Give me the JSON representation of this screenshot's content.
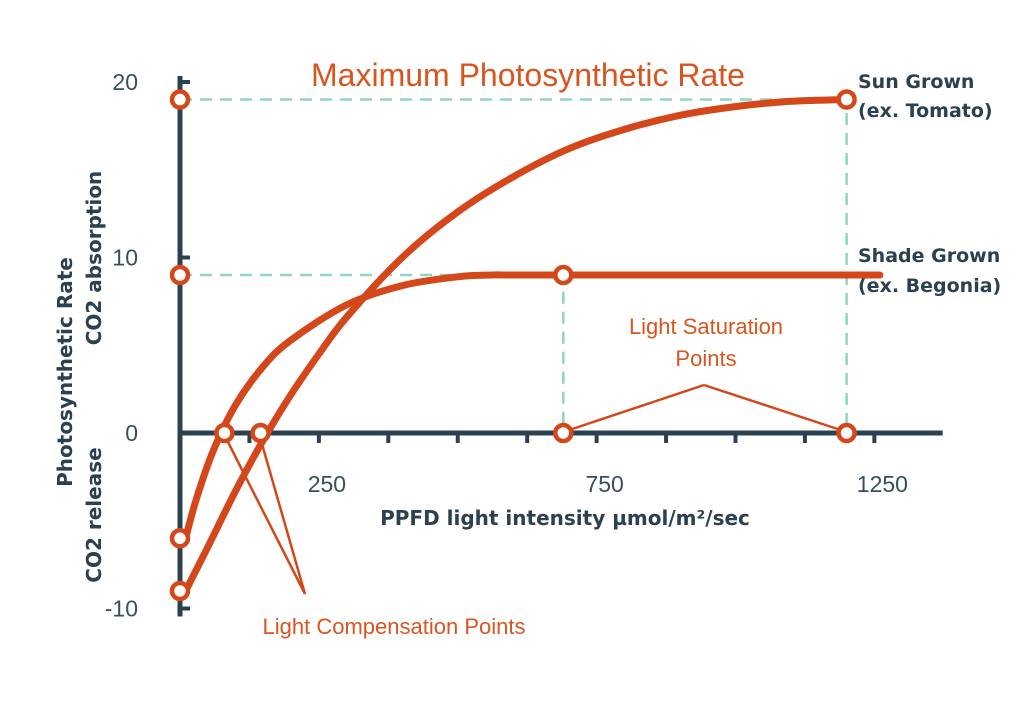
{
  "chart_data": {
    "type": "line",
    "title": "Maximum Photosynthetic Rate",
    "xlabel": "PPFD light intensity µmol/m²/sec",
    "ylabel_top": "Photosynthetic Rate",
    "ylabel_pos": "CO2 absorption",
    "ylabel_neg": "CO2 release",
    "xlim": [
      0,
      1400
    ],
    "ylim": [
      -10,
      20
    ],
    "x_ticks": [
      125,
      250,
      375,
      500,
      625,
      750,
      875,
      1000,
      1125,
      1250
    ],
    "x_tick_labels": [
      {
        "x": 250,
        "label": "250"
      },
      {
        "x": 750,
        "label": "750"
      },
      {
        "x": 1250,
        "label": "1250"
      }
    ],
    "y_ticks": [
      -10,
      0,
      10,
      20
    ],
    "y_tick_labels": [
      {
        "y": 20,
        "label": "20"
      },
      {
        "y": 10,
        "label": "10"
      },
      {
        "y": 0,
        "label": "0"
      },
      {
        "y": -10,
        "label": "-10"
      }
    ],
    "series": [
      {
        "name_line1": "Sun Grown",
        "name_line2": "(ex. Tomato)",
        "x": [
          10,
          50,
          100,
          150,
          200,
          250,
          300,
          400,
          500,
          600,
          700,
          800,
          900,
          1000,
          1100,
          1200
        ],
        "y": [
          -9,
          -6.5,
          -3.3,
          -0.4,
          2.2,
          4.5,
          6.6,
          10.0,
          12.6,
          14.6,
          16.2,
          17.3,
          18.1,
          18.6,
          18.9,
          19
        ]
      },
      {
        "name_line1": "Shade Grown",
        "name_line2": "(ex. Begonia)",
        "x": [
          10,
          30,
          60,
          100,
          150,
          200,
          300,
          400,
          500,
          560,
          600,
          700,
          800,
          900,
          1000,
          1100,
          1200,
          1260
        ],
        "y": [
          -6,
          -3.7,
          -1.0,
          1.6,
          3.8,
          5.3,
          7.3,
          8.4,
          8.9,
          9,
          9,
          9,
          9,
          9,
          9,
          9,
          9,
          9
        ]
      }
    ],
    "markers": [
      {
        "x": 0,
        "y": 19
      },
      {
        "x": 0,
        "y": 9
      },
      {
        "x": 0,
        "y": -6
      },
      {
        "x": 0,
        "y": -9
      },
      {
        "x": 80,
        "y": 0
      },
      {
        "x": 145,
        "y": 0
      },
      {
        "x": 690,
        "y": 9
      },
      {
        "x": 690,
        "y": 0
      },
      {
        "x": 1200,
        "y": 19
      },
      {
        "x": 1200,
        "y": 0
      }
    ],
    "annotations": {
      "saturation_line1": "Light Saturation",
      "saturation_line2": "Points",
      "compensation": "Light Compensation Points"
    },
    "colors": {
      "curve": "#d4471a",
      "title": "#d95520",
      "guide": "#8fd4c4",
      "axis": "#2b4150"
    },
    "grid": false
  }
}
